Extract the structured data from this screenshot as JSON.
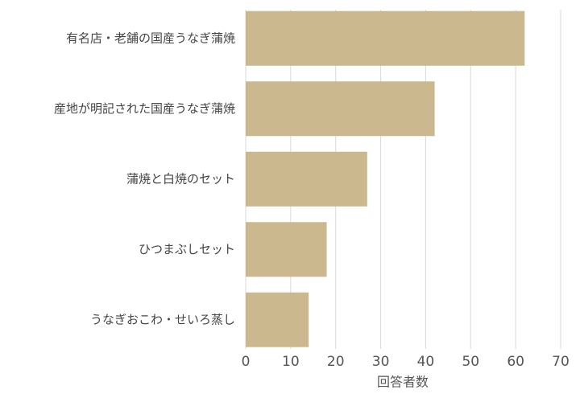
{
  "chart_data": {
    "type": "barh",
    "categories": [
      "有名店・老舗の国産うなぎ蒲焼",
      "産地が明記された国産うなぎ蒲焼",
      "蒲焼と白焼のセット",
      "ひつまぶしセット",
      "うなぎおこわ・せいろ蒸し"
    ],
    "values": [
      62,
      42,
      27,
      18,
      14
    ],
    "color": "#cbb88f",
    "xlabel": "回答者数",
    "xlim": [
      0,
      70
    ],
    "xticks": [
      0,
      10,
      20,
      30,
      40,
      50,
      60,
      70
    ],
    "grid": true
  }
}
